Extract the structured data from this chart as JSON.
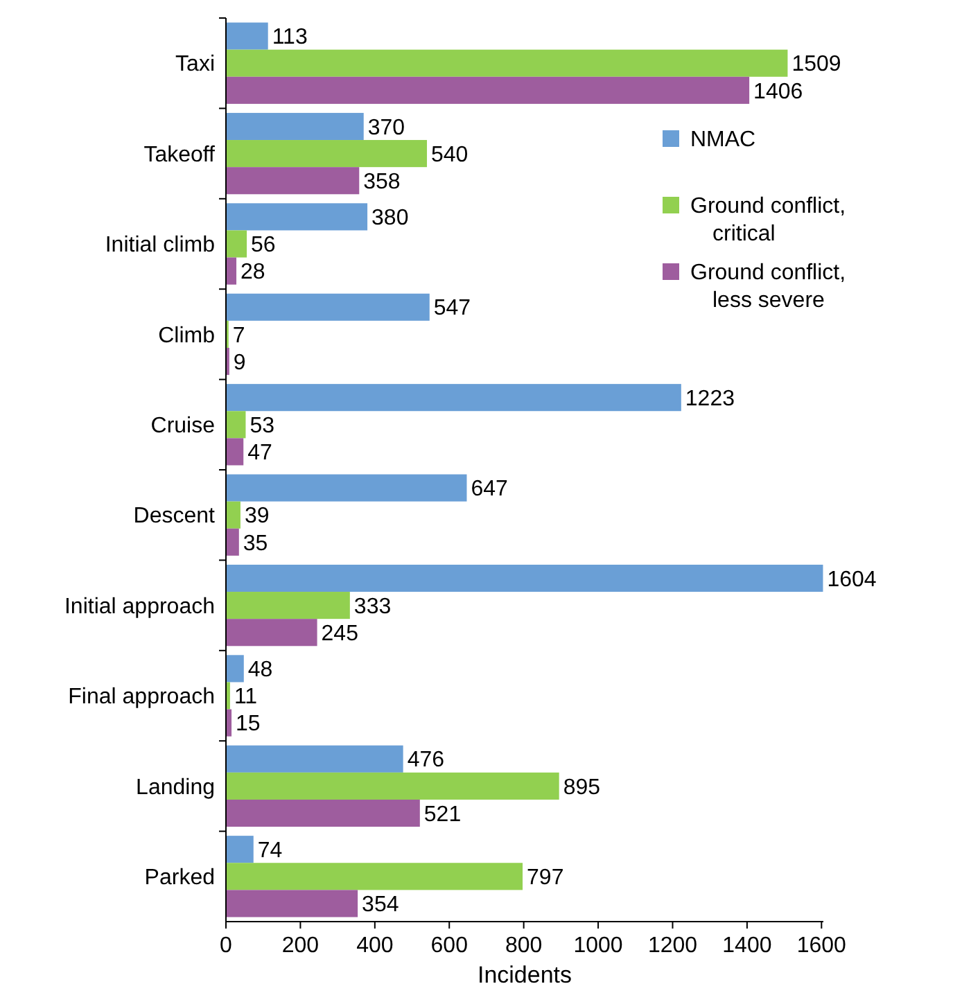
{
  "chart_data": {
    "type": "bar",
    "orientation": "horizontal",
    "xlabel": "Incidents",
    "categories": [
      "Taxi",
      "Takeoff",
      "Initial climb",
      "Climb",
      "Cruise",
      "Descent",
      "Initial approach",
      "Final approach",
      "Landing",
      "Parked"
    ],
    "series": [
      {
        "name": "NMAC",
        "color": "#6a9fd6",
        "values": [
          113,
          370,
          380,
          547,
          1223,
          647,
          1604,
          48,
          476,
          74
        ]
      },
      {
        "name": "Ground conflict, critical",
        "color": "#92d050",
        "values": [
          1509,
          540,
          56,
          7,
          53,
          39,
          333,
          11,
          895,
          797
        ]
      },
      {
        "name": "Ground conflict, less severe",
        "color": "#9e5d9e",
        "values": [
          1406,
          358,
          28,
          9,
          47,
          35,
          245,
          15,
          521,
          354
        ]
      }
    ],
    "xlim": [
      0,
      1605
    ],
    "xticks": [
      0,
      200,
      400,
      600,
      800,
      1000,
      1200,
      1400,
      1600
    ],
    "data_labels": true,
    "legend": "top right",
    "grid": false
  }
}
